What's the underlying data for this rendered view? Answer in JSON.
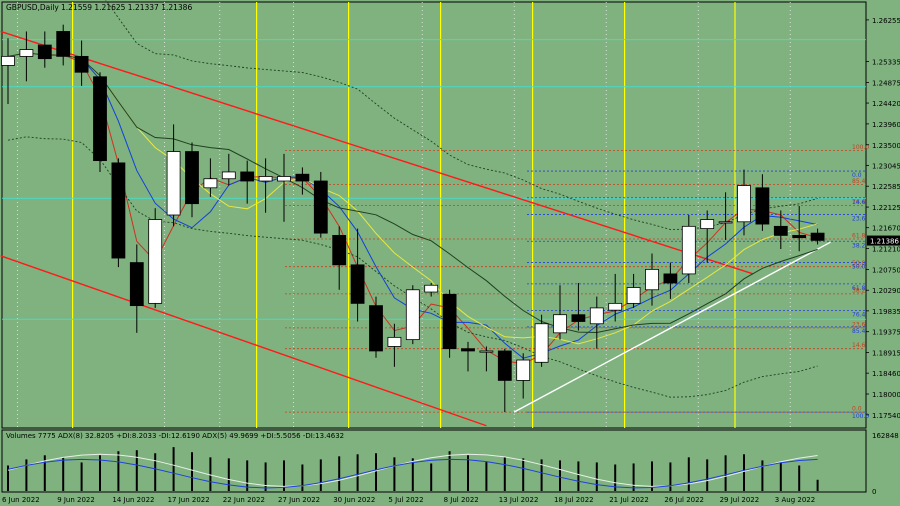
{
  "header": {
    "symbol": "GBPUSD,Daily",
    "ohlc": "1.21559 1.21625 1.21337 1.21386"
  },
  "indicator_header": "Volumes 7775  ADX(8) 32.8205 +DI:8.2033 -DI:12.6190  ADX(5) 49.9699 +DI:5.5056 -DI:13.4632",
  "colors": {
    "background": "#7fb27f",
    "bull": "#ffffff",
    "bear": "#000000",
    "channel": "#ff1a1a",
    "trendline": "#ffffff",
    "yellow_vline": "#ffff00",
    "cyan_level": "#40e0d0",
    "fib_red": "#c84020",
    "fib_blue": "#2040e0"
  },
  "chart_data": {
    "type": "candlestick",
    "y_range": [
      1.1725,
      1.2665
    ],
    "price_ticks": [
      "1.26255",
      "1.25335",
      "1.24875",
      "1.24420",
      "1.23960",
      "1.23500",
      "1.23045",
      "1.22585",
      "1.22125",
      "1.21670",
      "1.21210",
      "1.20750",
      "1.20290",
      "1.19835",
      "1.19375",
      "1.18915",
      "1.18460",
      "1.18000",
      "1.17540"
    ],
    "current_price": "1.21386",
    "x_labels": [
      "6 Jun 2022",
      "9 Jun 2022",
      "14 Jun 2022",
      "17 Jun 2022",
      "22 Jun 2022",
      "27 Jun 2022",
      "30 Jun 2022",
      "5 Jul 2022",
      "8 Jul 2022",
      "13 Jul 2022",
      "18 Jul 2022",
      "21 Jul 2022",
      "26 Jul 2022",
      "29 Jul 2022",
      "3 Aug 2022"
    ],
    "candles": [
      {
        "o": 1.2525,
        "h": 1.2585,
        "l": 1.244,
        "c": 1.2545
      },
      {
        "o": 1.2545,
        "h": 1.26,
        "l": 1.249,
        "c": 1.256
      },
      {
        "o": 1.257,
        "h": 1.26,
        "l": 1.252,
        "c": 1.254
      },
      {
        "o": 1.26,
        "h": 1.2615,
        "l": 1.2525,
        "c": 1.2545
      },
      {
        "o": 1.2545,
        "h": 1.258,
        "l": 1.248,
        "c": 1.251
      },
      {
        "o": 1.25,
        "h": 1.251,
        "l": 1.229,
        "c": 1.2315
      },
      {
        "o": 1.231,
        "h": 1.232,
        "l": 1.208,
        "c": 1.21
      },
      {
        "o": 1.209,
        "h": 1.213,
        "l": 1.1935,
        "c": 1.1995
      },
      {
        "o": 1.2,
        "h": 1.221,
        "l": 1.199,
        "c": 1.2185
      },
      {
        "o": 1.2195,
        "h": 1.2395,
        "l": 1.217,
        "c": 1.2335
      },
      {
        "o": 1.2335,
        "h": 1.2355,
        "l": 1.219,
        "c": 1.222
      },
      {
        "o": 1.2255,
        "h": 1.232,
        "l": 1.2235,
        "c": 1.2275
      },
      {
        "o": 1.2275,
        "h": 1.233,
        "l": 1.226,
        "c": 1.229
      },
      {
        "o": 1.229,
        "h": 1.2315,
        "l": 1.222,
        "c": 1.227
      },
      {
        "o": 1.227,
        "h": 1.232,
        "l": 1.22,
        "c": 1.228
      },
      {
        "o": 1.227,
        "h": 1.233,
        "l": 1.218,
        "c": 1.228
      },
      {
        "o": 1.2285,
        "h": 1.23,
        "l": 1.224,
        "c": 1.227
      },
      {
        "o": 1.227,
        "h": 1.229,
        "l": 1.2145,
        "c": 1.2155
      },
      {
        "o": 1.215,
        "h": 1.217,
        "l": 1.203,
        "c": 1.2085
      },
      {
        "o": 1.2085,
        "h": 1.2165,
        "l": 1.196,
        "c": 1.2
      },
      {
        "o": 1.1995,
        "h": 1.2015,
        "l": 1.188,
        "c": 1.1895
      },
      {
        "o": 1.1905,
        "h": 1.1955,
        "l": 1.186,
        "c": 1.1925
      },
      {
        "o": 1.192,
        "h": 1.204,
        "l": 1.191,
        "c": 1.203
      },
      {
        "o": 1.2025,
        "h": 1.2045,
        "l": 1.2015,
        "c": 1.204
      },
      {
        "o": 1.202,
        "h": 1.203,
        "l": 1.188,
        "c": 1.19
      },
      {
        "o": 1.19,
        "h": 1.1915,
        "l": 1.185,
        "c": 1.1895
      },
      {
        "o": 1.1895,
        "h": 1.1905,
        "l": 1.185,
        "c": 1.1895
      },
      {
        "o": 1.1895,
        "h": 1.19,
        "l": 1.176,
        "c": 1.183
      },
      {
        "o": 1.183,
        "h": 1.189,
        "l": 1.179,
        "c": 1.1875
      },
      {
        "o": 1.187,
        "h": 1.1975,
        "l": 1.186,
        "c": 1.1955
      },
      {
        "o": 1.1935,
        "h": 1.204,
        "l": 1.192,
        "c": 1.1975
      },
      {
        "o": 1.1975,
        "h": 1.2045,
        "l": 1.194,
        "c": 1.196
      },
      {
        "o": 1.1955,
        "h": 1.2015,
        "l": 1.19,
        "c": 1.199
      },
      {
        "o": 1.1985,
        "h": 1.2065,
        "l": 1.196,
        "c": 1.2
      },
      {
        "o": 1.2,
        "h": 1.2065,
        "l": 1.199,
        "c": 1.2035
      },
      {
        "o": 1.203,
        "h": 1.211,
        "l": 1.1995,
        "c": 1.2075
      },
      {
        "o": 1.2065,
        "h": 1.209,
        "l": 1.201,
        "c": 1.2045
      },
      {
        "o": 1.2065,
        "h": 1.2195,
        "l": 1.2045,
        "c": 1.217
      },
      {
        "o": 1.2165,
        "h": 1.2205,
        "l": 1.209,
        "c": 1.2185
      },
      {
        "o": 1.218,
        "h": 1.2245,
        "l": 1.214,
        "c": 1.218
      },
      {
        "o": 1.218,
        "h": 1.2295,
        "l": 1.215,
        "c": 1.226
      },
      {
        "o": 1.2255,
        "h": 1.2285,
        "l": 1.216,
        "c": 1.2175
      },
      {
        "o": 1.217,
        "h": 1.2205,
        "l": 1.212,
        "c": 1.215
      },
      {
        "o": 1.215,
        "h": 1.2215,
        "l": 1.2115,
        "c": 1.2145
      },
      {
        "o": 1.2155,
        "h": 1.2165,
        "l": 1.213,
        "c": 1.2139
      }
    ],
    "volumes": [
      0.5,
      0.62,
      0.7,
      0.66,
      0.56,
      0.7,
      0.78,
      0.8,
      0.74,
      0.86,
      0.76,
      0.66,
      0.64,
      0.6,
      0.56,
      0.6,
      0.52,
      0.62,
      0.68,
      0.72,
      0.74,
      0.66,
      0.64,
      0.54,
      0.78,
      0.7,
      0.58,
      0.66,
      0.64,
      0.62,
      0.6,
      0.58,
      0.56,
      0.52,
      0.54,
      0.58,
      0.56,
      0.66,
      0.62,
      0.7,
      0.72,
      0.6,
      0.56,
      0.5,
      0.22
    ],
    "volume_tick": "162848",
    "volume_zero": "0",
    "fib_red": [
      {
        "label": "100.0",
        "value": 1.2337
      },
      {
        "label": "85.4",
        "value": 1.2262
      },
      {
        "label": "76.4",
        "value": 1.2216
      },
      {
        "label": "61.8",
        "value": 1.2142
      },
      {
        "label": "50.0",
        "value": 1.2081
      },
      {
        "label": "38.2",
        "value": 1.2021
      },
      {
        "label": "23.6",
        "value": 1.1946
      },
      {
        "label": "14.6",
        "value": 1.19
      },
      {
        "label": "0.0",
        "value": 1.176
      }
    ],
    "fib_blue": [
      {
        "label": "0.0",
        "value": 1.2292
      },
      {
        "label": "14.6",
        "value": 1.2233
      },
      {
        "label": "23.6",
        "value": 1.2196
      },
      {
        "label": "38.2",
        "value": 1.2137
      },
      {
        "label": "50.0",
        "value": 1.209
      },
      {
        "label": "61.8",
        "value": 1.2043
      },
      {
        "label": "76.4",
        "value": 1.1984
      },
      {
        "label": "85.4",
        "value": 1.1948
      },
      {
        "label": "100.0",
        "value": 1.176
      }
    ],
    "cyan_levels": [
      1.2582,
      1.2478,
      1.2232,
      1.1965
    ],
    "grid": false
  }
}
